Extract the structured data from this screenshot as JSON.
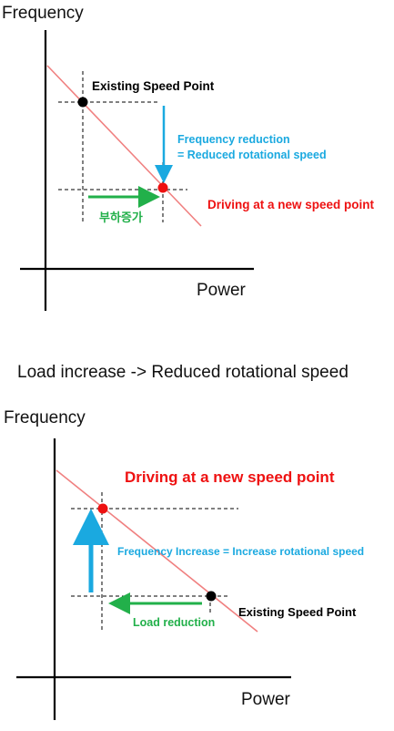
{
  "colors": {
    "black": "#000000",
    "red": "#ee1111",
    "blue": "#1aa9e0",
    "green": "#22b04a",
    "demand_line": "#f08080"
  },
  "top_diagram": {
    "y_axis_label": "Frequency",
    "x_axis_label": "Power",
    "existing_point_label": "Existing Speed Point",
    "reduction_label_line1": "Frequency reduction",
    "reduction_label_line2": "= Reduced rotational speed",
    "new_point_label": "Driving at a new speed point",
    "load_label": "부하증가"
  },
  "caption": "Load increase -> Reduced rotational speed",
  "bottom_diagram": {
    "y_axis_label": "Frequency",
    "x_axis_label": "Power",
    "new_point_label": "Driving at a new speed point",
    "increase_label": "Frequency Increase = Increase rotational speed",
    "existing_point_label": "Existing Speed Point",
    "load_label": "Load reduction"
  }
}
